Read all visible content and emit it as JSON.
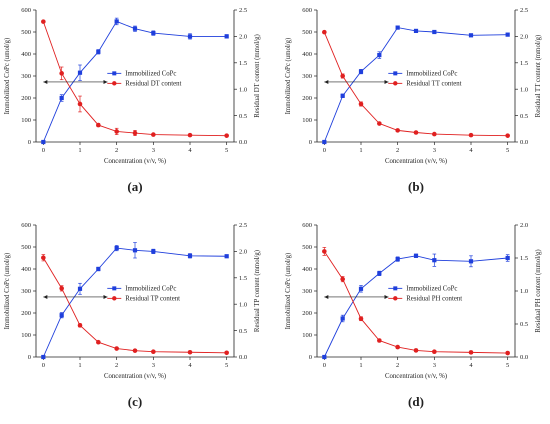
{
  "colors": {
    "immobilized": "#1f3fdc",
    "residual": "#e02020",
    "axis": "#222222"
  },
  "chart_data": [
    {
      "type": "line",
      "panel_label": "(a)",
      "xlabel": "Concentration (v/v, %)",
      "ylabel_left": "Immobilized CoPc (umol/g)",
      "ylabel_right": "Residual DT content (mmol/g)",
      "x": [
        0,
        0.5,
        1,
        1.5,
        2,
        2.5,
        3,
        4,
        5
      ],
      "xticks": [
        0,
        1,
        2,
        3,
        4,
        5
      ],
      "ylim_left": [
        0,
        600
      ],
      "yticks_left": [
        0,
        100,
        200,
        300,
        400,
        500,
        600
      ],
      "ylim_right": [
        0,
        2.5
      ],
      "yticks_right": [
        "0.0",
        "0.5",
        "1.0",
        "1.5",
        "2.0",
        "2.5"
      ],
      "legend_position": "center-right",
      "series": [
        {
          "name": "Immobilized CoPc",
          "axis": "left",
          "marker": "square",
          "values": [
            0,
            200,
            315,
            410,
            548,
            515,
            495,
            480,
            480
          ],
          "errors": [
            0,
            15,
            35,
            10,
            15,
            12,
            10,
            12,
            8
          ]
        },
        {
          "name": "Residual DT content",
          "axis": "right",
          "marker": "circle",
          "values": [
            2.28,
            1.3,
            0.72,
            0.32,
            0.2,
            0.17,
            0.14,
            0.13,
            0.12
          ],
          "errors": [
            0.02,
            0.12,
            0.15,
            0.03,
            0.06,
            0.05,
            0.02,
            0.02,
            0.02
          ]
        }
      ]
    },
    {
      "type": "line",
      "panel_label": "(b)",
      "xlabel": "Concentration (v/v, %)",
      "ylabel_left": "Immobilized CoPc (umol/g)",
      "ylabel_right": "Residual TT content (mmol/g)",
      "x": [
        0,
        0.5,
        1,
        1.5,
        2,
        2.5,
        3,
        4,
        5
      ],
      "xticks": [
        0,
        1,
        2,
        3,
        4,
        5
      ],
      "ylim_left": [
        0,
        600
      ],
      "yticks_left": [
        0,
        100,
        200,
        300,
        400,
        500,
        600
      ],
      "ylim_right": [
        0,
        2.5
      ],
      "yticks_right": [
        "0.0",
        "0.5",
        "1.0",
        "1.5",
        "2.0",
        "2.5"
      ],
      "legend_position": "center-right",
      "series": [
        {
          "name": "Immobilized CoPc",
          "axis": "left",
          "marker": "square",
          "values": [
            0,
            210,
            320,
            395,
            520,
            505,
            500,
            485,
            488
          ],
          "errors": [
            0,
            8,
            10,
            15,
            6,
            6,
            5,
            5,
            5
          ]
        },
        {
          "name": "Residual TT content",
          "axis": "right",
          "marker": "circle",
          "values": [
            2.08,
            1.25,
            0.72,
            0.35,
            0.22,
            0.18,
            0.15,
            0.13,
            0.12
          ],
          "errors": [
            0.02,
            0.04,
            0.04,
            0.02,
            0.02,
            0.02,
            0.02,
            0.02,
            0.02
          ]
        }
      ]
    },
    {
      "type": "line",
      "panel_label": "(c)",
      "xlabel": "Concentration (v/v, %)",
      "ylabel_left": "Immobilized CoPc (umol/g)",
      "ylabel_right": "Residual TP content (mmol/g)",
      "x": [
        0,
        0.5,
        1,
        1.5,
        2,
        2.5,
        3,
        4,
        5
      ],
      "xticks": [
        0,
        1,
        2,
        3,
        4,
        5
      ],
      "ylim_left": [
        0,
        600
      ],
      "yticks_left": [
        0,
        100,
        200,
        300,
        400,
        500,
        600
      ],
      "ylim_right": [
        0,
        2.5
      ],
      "yticks_right": [
        "0.0",
        "0.5",
        "1.0",
        "1.5",
        "2.0",
        "2.5"
      ],
      "legend_position": "center-right",
      "series": [
        {
          "name": "Immobilized CoPc",
          "axis": "left",
          "marker": "square",
          "values": [
            0,
            190,
            310,
            400,
            495,
            485,
            480,
            460,
            458
          ],
          "errors": [
            0,
            12,
            25,
            8,
            12,
            35,
            10,
            10,
            6
          ]
        },
        {
          "name": "Residual TP content",
          "axis": "right",
          "marker": "circle",
          "values": [
            1.88,
            1.3,
            0.6,
            0.28,
            0.16,
            0.12,
            0.1,
            0.09,
            0.08
          ],
          "errors": [
            0.06,
            0.05,
            0.03,
            0.02,
            0.02,
            0.02,
            0.02,
            0.02,
            0.02
          ]
        }
      ]
    },
    {
      "type": "line",
      "panel_label": "(d)",
      "xlabel": "Concentration (v/v, %)",
      "ylabel_left": "Immobilized CoPc (umol/g)",
      "ylabel_right": "Residual PH content (mmol/g)",
      "x": [
        0,
        0.5,
        1,
        1.5,
        2,
        2.5,
        3,
        4,
        5
      ],
      "xticks": [
        0,
        1,
        2,
        3,
        4,
        5
      ],
      "ylim_left": [
        0,
        600
      ],
      "yticks_left": [
        0,
        100,
        200,
        300,
        400,
        500,
        600
      ],
      "ylim_right": [
        0,
        2.0
      ],
      "yticks_right": [
        "0.0",
        "0.5",
        "1.0",
        "1.5",
        "2.0"
      ],
      "legend_position": "center-right",
      "series": [
        {
          "name": "Immobilized CoPc",
          "axis": "left",
          "marker": "square",
          "values": [
            0,
            175,
            310,
            380,
            445,
            460,
            440,
            435,
            450
          ],
          "errors": [
            0,
            15,
            15,
            10,
            10,
            8,
            28,
            25,
            15
          ]
        },
        {
          "name": "Residual PH content",
          "axis": "right",
          "marker": "circle",
          "values": [
            1.6,
            1.18,
            0.58,
            0.25,
            0.15,
            0.1,
            0.08,
            0.07,
            0.06
          ],
          "errors": [
            0.06,
            0.04,
            0.03,
            0.02,
            0.02,
            0.02,
            0.02,
            0.02,
            0.02
          ]
        }
      ]
    }
  ]
}
